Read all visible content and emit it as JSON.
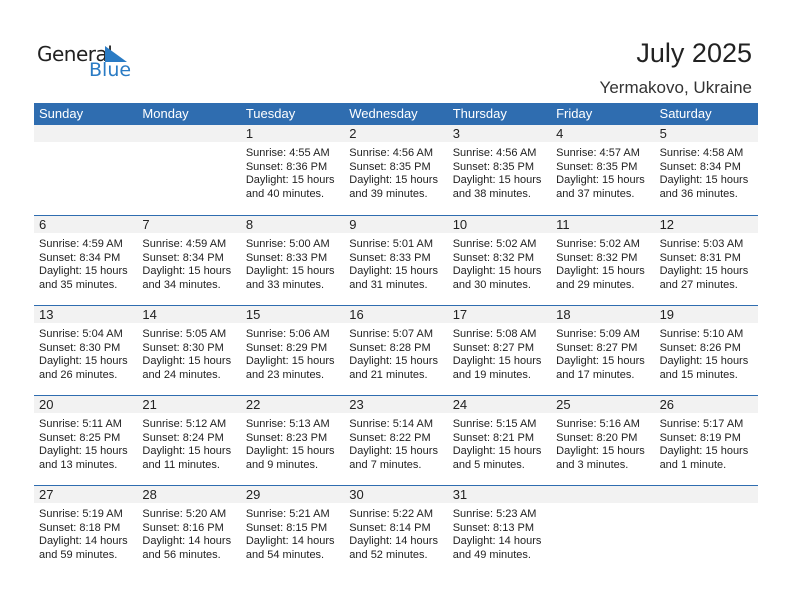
{
  "logo": {
    "general": "General",
    "blue": "Blue"
  },
  "header": {
    "title": "July 2025",
    "location": "Yermakovo, Ukraine"
  },
  "colors": {
    "header_bg": "#2f6db0",
    "logo_blue": "#2a7bc4",
    "date_band": "#f2f2f2"
  },
  "weekdays": [
    "Sunday",
    "Monday",
    "Tuesday",
    "Wednesday",
    "Thursday",
    "Friday",
    "Saturday"
  ],
  "weeks": [
    [
      null,
      null,
      {
        "day": "1",
        "sunrise": "Sunrise: 4:55 AM",
        "sunset": "Sunset: 8:36 PM",
        "daylight": "Daylight: 15 hours",
        "minutes": "and 40 minutes."
      },
      {
        "day": "2",
        "sunrise": "Sunrise: 4:56 AM",
        "sunset": "Sunset: 8:35 PM",
        "daylight": "Daylight: 15 hours",
        "minutes": "and 39 minutes."
      },
      {
        "day": "3",
        "sunrise": "Sunrise: 4:56 AM",
        "sunset": "Sunset: 8:35 PM",
        "daylight": "Daylight: 15 hours",
        "minutes": "and 38 minutes."
      },
      {
        "day": "4",
        "sunrise": "Sunrise: 4:57 AM",
        "sunset": "Sunset: 8:35 PM",
        "daylight": "Daylight: 15 hours",
        "minutes": "and 37 minutes."
      },
      {
        "day": "5",
        "sunrise": "Sunrise: 4:58 AM",
        "sunset": "Sunset: 8:34 PM",
        "daylight": "Daylight: 15 hours",
        "minutes": "and 36 minutes."
      }
    ],
    [
      {
        "day": "6",
        "sunrise": "Sunrise: 4:59 AM",
        "sunset": "Sunset: 8:34 PM",
        "daylight": "Daylight: 15 hours",
        "minutes": "and 35 minutes."
      },
      {
        "day": "7",
        "sunrise": "Sunrise: 4:59 AM",
        "sunset": "Sunset: 8:34 PM",
        "daylight": "Daylight: 15 hours",
        "minutes": "and 34 minutes."
      },
      {
        "day": "8",
        "sunrise": "Sunrise: 5:00 AM",
        "sunset": "Sunset: 8:33 PM",
        "daylight": "Daylight: 15 hours",
        "minutes": "and 33 minutes."
      },
      {
        "day": "9",
        "sunrise": "Sunrise: 5:01 AM",
        "sunset": "Sunset: 8:33 PM",
        "daylight": "Daylight: 15 hours",
        "minutes": "and 31 minutes."
      },
      {
        "day": "10",
        "sunrise": "Sunrise: 5:02 AM",
        "sunset": "Sunset: 8:32 PM",
        "daylight": "Daylight: 15 hours",
        "minutes": "and 30 minutes."
      },
      {
        "day": "11",
        "sunrise": "Sunrise: 5:02 AM",
        "sunset": "Sunset: 8:32 PM",
        "daylight": "Daylight: 15 hours",
        "minutes": "and 29 minutes."
      },
      {
        "day": "12",
        "sunrise": "Sunrise: 5:03 AM",
        "sunset": "Sunset: 8:31 PM",
        "daylight": "Daylight: 15 hours",
        "minutes": "and 27 minutes."
      }
    ],
    [
      {
        "day": "13",
        "sunrise": "Sunrise: 5:04 AM",
        "sunset": "Sunset: 8:30 PM",
        "daylight": "Daylight: 15 hours",
        "minutes": "and 26 minutes."
      },
      {
        "day": "14",
        "sunrise": "Sunrise: 5:05 AM",
        "sunset": "Sunset: 8:30 PM",
        "daylight": "Daylight: 15 hours",
        "minutes": "and 24 minutes."
      },
      {
        "day": "15",
        "sunrise": "Sunrise: 5:06 AM",
        "sunset": "Sunset: 8:29 PM",
        "daylight": "Daylight: 15 hours",
        "minutes": "and 23 minutes."
      },
      {
        "day": "16",
        "sunrise": "Sunrise: 5:07 AM",
        "sunset": "Sunset: 8:28 PM",
        "daylight": "Daylight: 15 hours",
        "minutes": "and 21 minutes."
      },
      {
        "day": "17",
        "sunrise": "Sunrise: 5:08 AM",
        "sunset": "Sunset: 8:27 PM",
        "daylight": "Daylight: 15 hours",
        "minutes": "and 19 minutes."
      },
      {
        "day": "18",
        "sunrise": "Sunrise: 5:09 AM",
        "sunset": "Sunset: 8:27 PM",
        "daylight": "Daylight: 15 hours",
        "minutes": "and 17 minutes."
      },
      {
        "day": "19",
        "sunrise": "Sunrise: 5:10 AM",
        "sunset": "Sunset: 8:26 PM",
        "daylight": "Daylight: 15 hours",
        "minutes": "and 15 minutes."
      }
    ],
    [
      {
        "day": "20",
        "sunrise": "Sunrise: 5:11 AM",
        "sunset": "Sunset: 8:25 PM",
        "daylight": "Daylight: 15 hours",
        "minutes": "and 13 minutes."
      },
      {
        "day": "21",
        "sunrise": "Sunrise: 5:12 AM",
        "sunset": "Sunset: 8:24 PM",
        "daylight": "Daylight: 15 hours",
        "minutes": "and 11 minutes."
      },
      {
        "day": "22",
        "sunrise": "Sunrise: 5:13 AM",
        "sunset": "Sunset: 8:23 PM",
        "daylight": "Daylight: 15 hours",
        "minutes": "and 9 minutes."
      },
      {
        "day": "23",
        "sunrise": "Sunrise: 5:14 AM",
        "sunset": "Sunset: 8:22 PM",
        "daylight": "Daylight: 15 hours",
        "minutes": "and 7 minutes."
      },
      {
        "day": "24",
        "sunrise": "Sunrise: 5:15 AM",
        "sunset": "Sunset: 8:21 PM",
        "daylight": "Daylight: 15 hours",
        "minutes": "and 5 minutes."
      },
      {
        "day": "25",
        "sunrise": "Sunrise: 5:16 AM",
        "sunset": "Sunset: 8:20 PM",
        "daylight": "Daylight: 15 hours",
        "minutes": "and 3 minutes."
      },
      {
        "day": "26",
        "sunrise": "Sunrise: 5:17 AM",
        "sunset": "Sunset: 8:19 PM",
        "daylight": "Daylight: 15 hours",
        "minutes": "and 1 minute."
      }
    ],
    [
      {
        "day": "27",
        "sunrise": "Sunrise: 5:19 AM",
        "sunset": "Sunset: 8:18 PM",
        "daylight": "Daylight: 14 hours",
        "minutes": "and 59 minutes."
      },
      {
        "day": "28",
        "sunrise": "Sunrise: 5:20 AM",
        "sunset": "Sunset: 8:16 PM",
        "daylight": "Daylight: 14 hours",
        "minutes": "and 56 minutes."
      },
      {
        "day": "29",
        "sunrise": "Sunrise: 5:21 AM",
        "sunset": "Sunset: 8:15 PM",
        "daylight": "Daylight: 14 hours",
        "minutes": "and 54 minutes."
      },
      {
        "day": "30",
        "sunrise": "Sunrise: 5:22 AM",
        "sunset": "Sunset: 8:14 PM",
        "daylight": "Daylight: 14 hours",
        "minutes": "and 52 minutes."
      },
      {
        "day": "31",
        "sunrise": "Sunrise: 5:23 AM",
        "sunset": "Sunset: 8:13 PM",
        "daylight": "Daylight: 14 hours",
        "minutes": "and 49 minutes."
      },
      null,
      null
    ]
  ]
}
